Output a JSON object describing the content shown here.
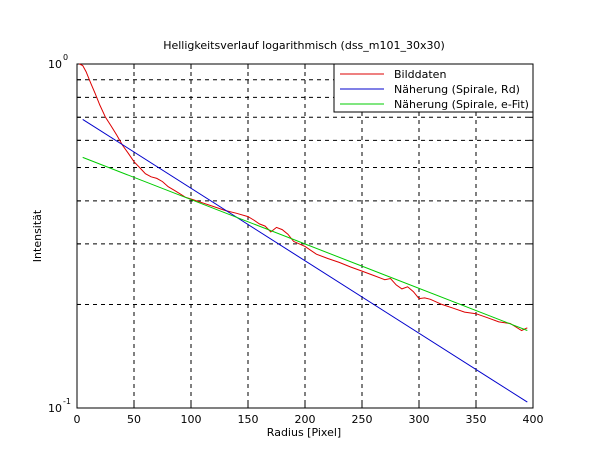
{
  "chart_data": {
    "type": "line",
    "title": "Helligkeitsverlauf logarithmisch (dss_m101_30x30)",
    "xlabel": "Radius [Pixel]",
    "ylabel": "Intensität",
    "xlim": [
      0,
      400
    ],
    "ylim": [
      0.1,
      1.0
    ],
    "yscale": "log",
    "grid": true,
    "grid_style": "dashed",
    "legend_position": "top-right",
    "x_ticks": [
      {
        "value": 0,
        "label": "0"
      },
      {
        "value": 50,
        "label": "50"
      },
      {
        "value": 100,
        "label": "100"
      },
      {
        "value": 150,
        "label": "150"
      },
      {
        "value": 200,
        "label": "200"
      },
      {
        "value": 250,
        "label": "250"
      },
      {
        "value": 300,
        "label": "300"
      },
      {
        "value": 350,
        "label": "350"
      },
      {
        "value": 400,
        "label": "400"
      }
    ],
    "y_ticks": [
      {
        "value": 0.1,
        "base": "10",
        "exponent": "-1"
      },
      {
        "value": 1.0,
        "base": "10",
        "exponent": "0"
      }
    ],
    "series": [
      {
        "name": "Bilddaten",
        "color": "#dd0000",
        "x": [
          2,
          5,
          8,
          12,
          16,
          20,
          25,
          30,
          35,
          40,
          45,
          50,
          55,
          60,
          65,
          70,
          75,
          80,
          85,
          90,
          95,
          100,
          110,
          120,
          130,
          140,
          150,
          155,
          160,
          165,
          170,
          175,
          180,
          185,
          190,
          200,
          210,
          220,
          230,
          240,
          250,
          260,
          270,
          275,
          280,
          285,
          290,
          295,
          300,
          305,
          310,
          320,
          330,
          340,
          350,
          360,
          370,
          380,
          385,
          390,
          395
        ],
        "y": [
          1.0,
          0.99,
          0.95,
          0.88,
          0.82,
          0.76,
          0.7,
          0.66,
          0.62,
          0.58,
          0.55,
          0.52,
          0.5,
          0.48,
          0.47,
          0.465,
          0.455,
          0.44,
          0.43,
          0.42,
          0.41,
          0.405,
          0.395,
          0.385,
          0.375,
          0.368,
          0.36,
          0.352,
          0.343,
          0.338,
          0.325,
          0.335,
          0.33,
          0.32,
          0.305,
          0.295,
          0.28,
          0.272,
          0.265,
          0.257,
          0.25,
          0.243,
          0.236,
          0.238,
          0.228,
          0.222,
          0.225,
          0.218,
          0.208,
          0.209,
          0.207,
          0.2,
          0.195,
          0.19,
          0.188,
          0.183,
          0.178,
          0.176,
          0.172,
          0.168,
          0.171
        ]
      },
      {
        "name": "Näherung (Spirale, Rd)",
        "color": "#0000cc",
        "x": [
          5,
          395
        ],
        "y": [
          0.69,
          0.104
        ]
      },
      {
        "name": "Näherung (Spirale, e-Fit)",
        "color": "#00cc00",
        "x": [
          5,
          395
        ],
        "y": [
          0.535,
          0.168
        ]
      }
    ]
  }
}
